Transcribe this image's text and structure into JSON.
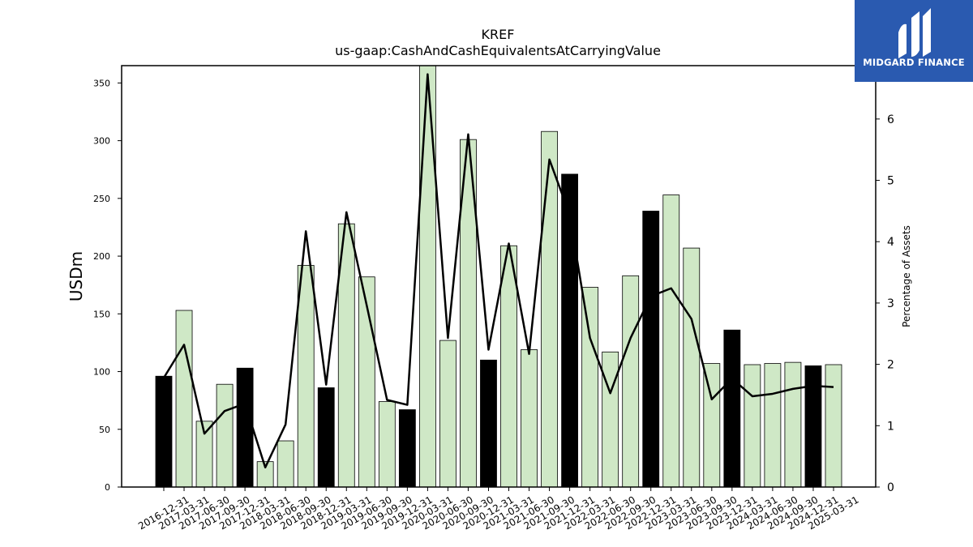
{
  "brand": {
    "name": "MIDGARD FINANCE",
    "bg_color": "#2a5ab0",
    "icon": "midgard-logo-icon"
  },
  "chart_data": {
    "type": "bar",
    "title": "KREF",
    "subtitle": "us-gaap:CashAndCashEquivalentsAtCarryingValue",
    "ylabel": "USDm",
    "y2label": "Percentage of Assets",
    "ylim": [
      0,
      365
    ],
    "y2lim": [
      0,
      6.87
    ],
    "yticks": [
      0,
      50,
      100,
      150,
      200,
      250,
      300,
      350
    ],
    "y2ticks": [
      0,
      1,
      2,
      3,
      4,
      5,
      6
    ],
    "categories": [
      "2016-12-31",
      "2017-03-31",
      "2017-06-30",
      "2017-09-30",
      "2017-12-31",
      "2018-03-31",
      "2018-06-30",
      "2018-09-30",
      "2018-12-31",
      "2019-03-31",
      "2019-06-30",
      "2019-09-30",
      "2019-12-31",
      "2020-03-31",
      "2020-06-30",
      "2020-09-30",
      "2020-12-31",
      "2021-03-31",
      "2021-06-30",
      "2021-09-30",
      "2021-12-31",
      "2022-03-31",
      "2022-06-30",
      "2022-09-30",
      "2022-12-31",
      "2023-03-31",
      "2023-06-30",
      "2023-09-30",
      "2023-12-31",
      "2024-03-31",
      "2024-06-30",
      "2024-09-30",
      "2024-12-31",
      "2025-03-31"
    ],
    "series": [
      {
        "values": [
          96,
          153,
          57,
          89,
          103,
          22,
          40,
          192,
          86,
          228,
          182,
          74,
          67,
          365,
          127,
          301,
          110,
          209,
          119,
          308,
          271,
          173,
          117,
          183,
          239,
          253,
          207,
          107,
          136,
          106,
          107,
          108,
          105,
          106
        ],
        "highlight": [
          true,
          false,
          false,
          false,
          true,
          false,
          false,
          false,
          true,
          false,
          false,
          false,
          true,
          false,
          false,
          false,
          true,
          false,
          false,
          false,
          true,
          false,
          false,
          false,
          true,
          false,
          false,
          false,
          true,
          false,
          false,
          false,
          true,
          false
        ],
        "highlight_color": "#000000",
        "color": "#cfe8c6"
      },
      {
        "axis": "secondary",
        "type": "line",
        "values": [
          1.78,
          2.32,
          0.87,
          1.24,
          1.36,
          0.32,
          1.02,
          4.17,
          1.67,
          4.48,
          2.96,
          1.42,
          1.34,
          6.73,
          2.43,
          5.75,
          2.24,
          3.97,
          2.17,
          5.34,
          4.44,
          2.43,
          1.53,
          2.43,
          3.11,
          3.24,
          2.74,
          1.43,
          1.77,
          1.48,
          1.52,
          1.6,
          1.65,
          1.63
        ],
        "color": "#000000"
      }
    ],
    "grid": false
  }
}
